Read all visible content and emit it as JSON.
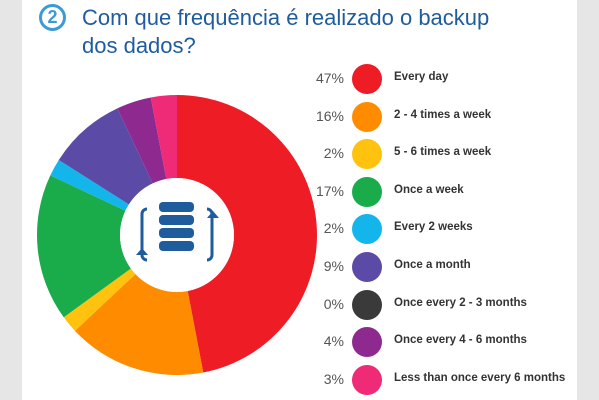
{
  "header": {
    "number": "2",
    "title": "Com que frequência é realizado o backup dos dados?"
  },
  "chart_data": {
    "type": "pie",
    "title": "Com que frequência é realizado o backup dos dados?",
    "slices": [
      {
        "label": "Every day",
        "value": 47,
        "percent_label": "47%",
        "color": "#ee1c25"
      },
      {
        "label": "2 - 4 times a week",
        "value": 16,
        "percent_label": "16%",
        "color": "#ff8c00"
      },
      {
        "label": "5 - 6 times a week",
        "value": 2,
        "percent_label": "2%",
        "color": "#ffc20e"
      },
      {
        "label": "Once a week",
        "value": 17,
        "percent_label": "17%",
        "color": "#1aab4a"
      },
      {
        "label": "Every 2 weeks",
        "value": 2,
        "percent_label": "2%",
        "color": "#13b5ea"
      },
      {
        "label": "Once a month",
        "value": 9,
        "percent_label": "9%",
        "color": "#5b4ba7"
      },
      {
        "label": "Once every 2 - 3 months",
        "value": 0,
        "percent_label": "0%",
        "color": "#3a3a3a"
      },
      {
        "label": "Once every 4 - 6 months",
        "value": 4,
        "percent_label": "4%",
        "color": "#8e2a8f"
      },
      {
        "label": "Less than once every 6 months",
        "value": 3,
        "percent_label": "3%",
        "color": "#ef2a76"
      }
    ],
    "legend_position": "right",
    "center_icon": "database-backup-icon",
    "icon_color": "#1f5c9e"
  }
}
